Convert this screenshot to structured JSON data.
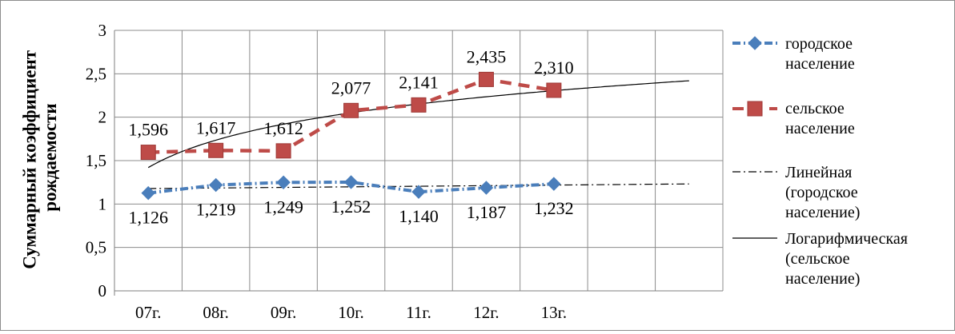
{
  "chart_data": {
    "type": "line",
    "ylabel_lines": [
      "Суммарный коэффициент",
      "рождаемости"
    ],
    "xlabel": "",
    "categories": [
      "07г.",
      "08г.",
      "09г.",
      "10г.",
      "11г.",
      "12г.",
      "13г."
    ],
    "ylim": [
      0,
      3
    ],
    "y_ticks": [
      "0",
      "0,5",
      "1",
      "1,5",
      "2",
      "2,5",
      "3"
    ],
    "grid": true,
    "legend_position": "right",
    "series": [
      {
        "name_lines": [
          "городское",
          "население"
        ],
        "values": [
          1.126,
          1.219,
          1.249,
          1.252,
          1.14,
          1.187,
          1.232
        ],
        "labels": [
          "1,126",
          "1,219",
          "1,249",
          "1,252",
          "1,140",
          "1,187",
          "1,232"
        ],
        "color": "#4a7ebb",
        "marker": "diamond",
        "line_style": "dash-dot",
        "label_position": "below"
      },
      {
        "name_lines": [
          "сельское",
          "население"
        ],
        "values": [
          1.596,
          1.617,
          1.612,
          2.077,
          2.141,
          2.435,
          2.31
        ],
        "labels": [
          "1,596",
          "1,617",
          "1,612",
          "2,077",
          "2,141",
          "2,435",
          "2,310"
        ],
        "color": "#be4b48",
        "marker": "square",
        "line_style": "dashed",
        "label_position": "above"
      }
    ],
    "trendlines": [
      {
        "name_lines": [
          "Линейная",
          "(городское",
          "население)"
        ],
        "type": "linear",
        "color": "#000000",
        "line_style": "dash-dot",
        "x_range": [
          1,
          9
        ],
        "values": [
          1.178,
          1.2315
        ]
      },
      {
        "name_lines": [
          "Логарифмическая",
          "(сельское",
          "население)"
        ],
        "type": "logarithmic",
        "color": "#000000",
        "line_style": "solid",
        "x_range": [
          1,
          9
        ],
        "a": 1.42,
        "b": 0.455
      }
    ]
  }
}
